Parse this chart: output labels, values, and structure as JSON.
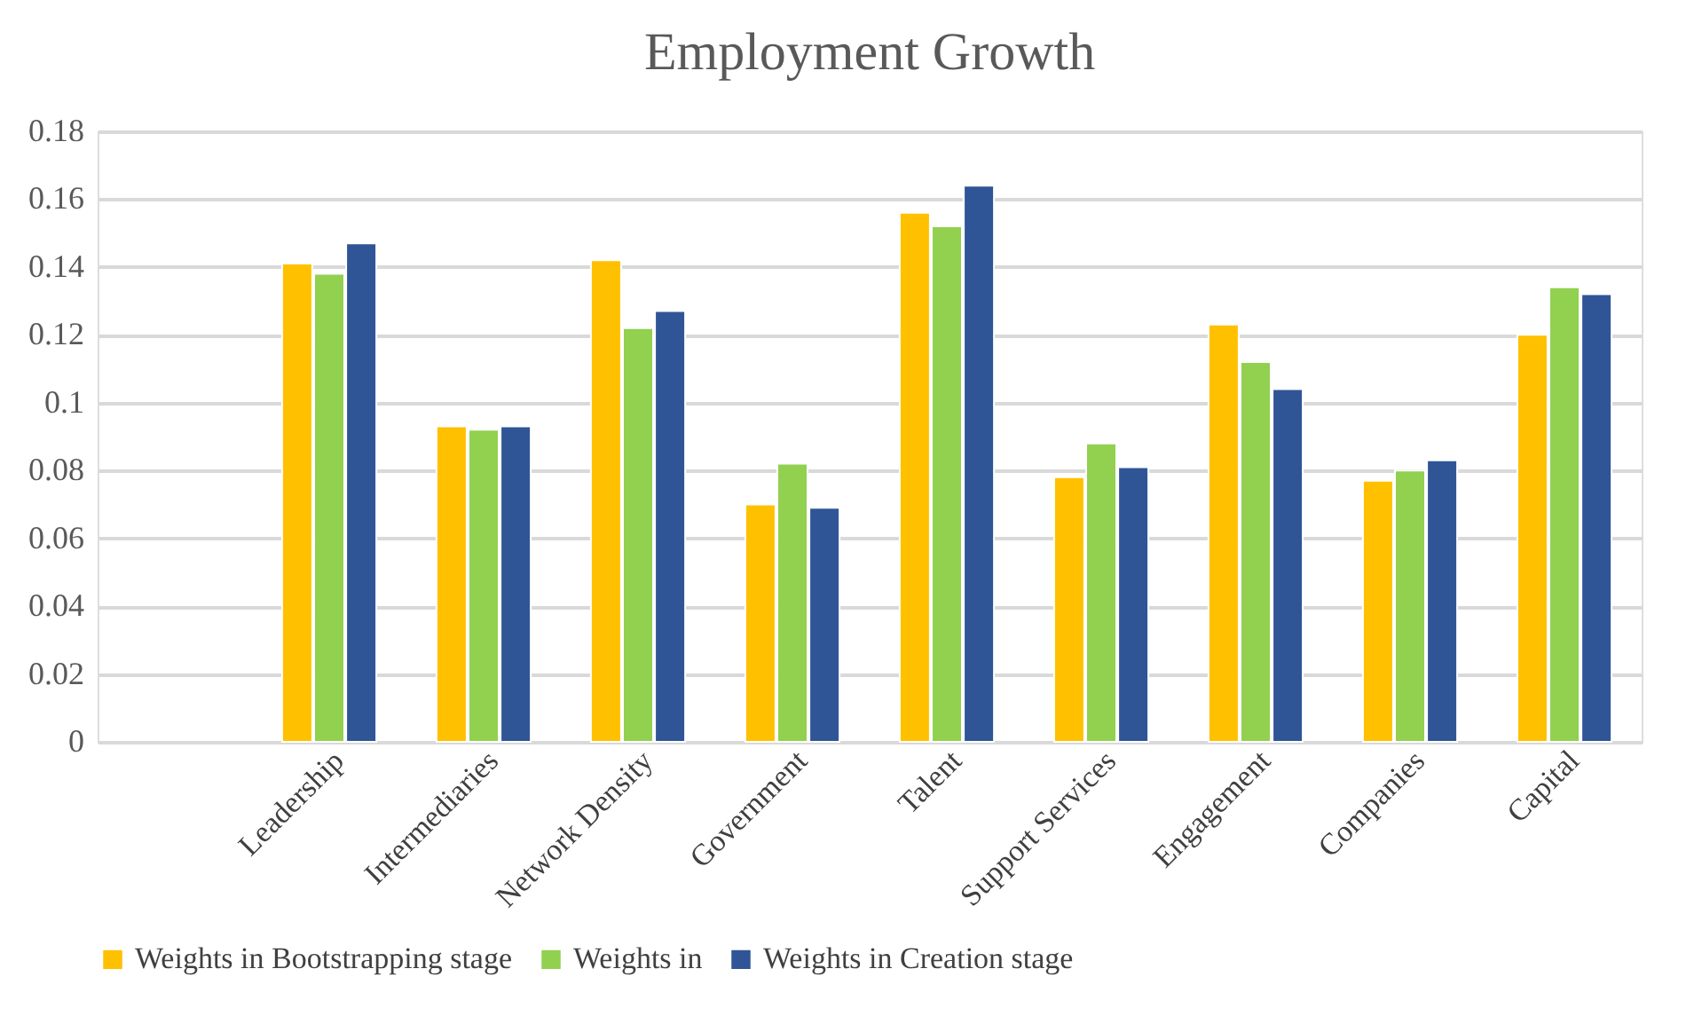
{
  "chart_data": {
    "type": "bar",
    "title": "Employment Growth",
    "categories": [
      null,
      "Leadership",
      "Intermediaries",
      "Network Density",
      "Government",
      "Talent",
      "Support Services",
      "Engagement",
      "Companies",
      "Capital"
    ],
    "series": [
      {
        "name": "Weights in Bootstrapping stage",
        "color": "#ffc000",
        "values": [
          null,
          0.141,
          0.093,
          0.142,
          0.07,
          0.156,
          0.078,
          0.123,
          0.077,
          0.12
        ]
      },
      {
        "name": "Weights in",
        "color": "#92d050",
        "values": [
          null,
          0.138,
          0.092,
          0.122,
          0.082,
          0.152,
          0.088,
          0.112,
          0.08,
          0.134
        ]
      },
      {
        "name": "Weights in Creation stage",
        "color": "#2f5597",
        "values": [
          null,
          0.147,
          0.093,
          0.127,
          0.069,
          0.164,
          0.081,
          0.104,
          0.083,
          0.132
        ]
      }
    ],
    "ylim": [
      0,
      0.18
    ],
    "yticks": [
      0,
      0.02,
      0.04,
      0.06,
      0.08,
      0.1,
      0.12,
      0.14,
      0.16,
      0.18
    ],
    "grid": "y",
    "legend": "bottom"
  }
}
